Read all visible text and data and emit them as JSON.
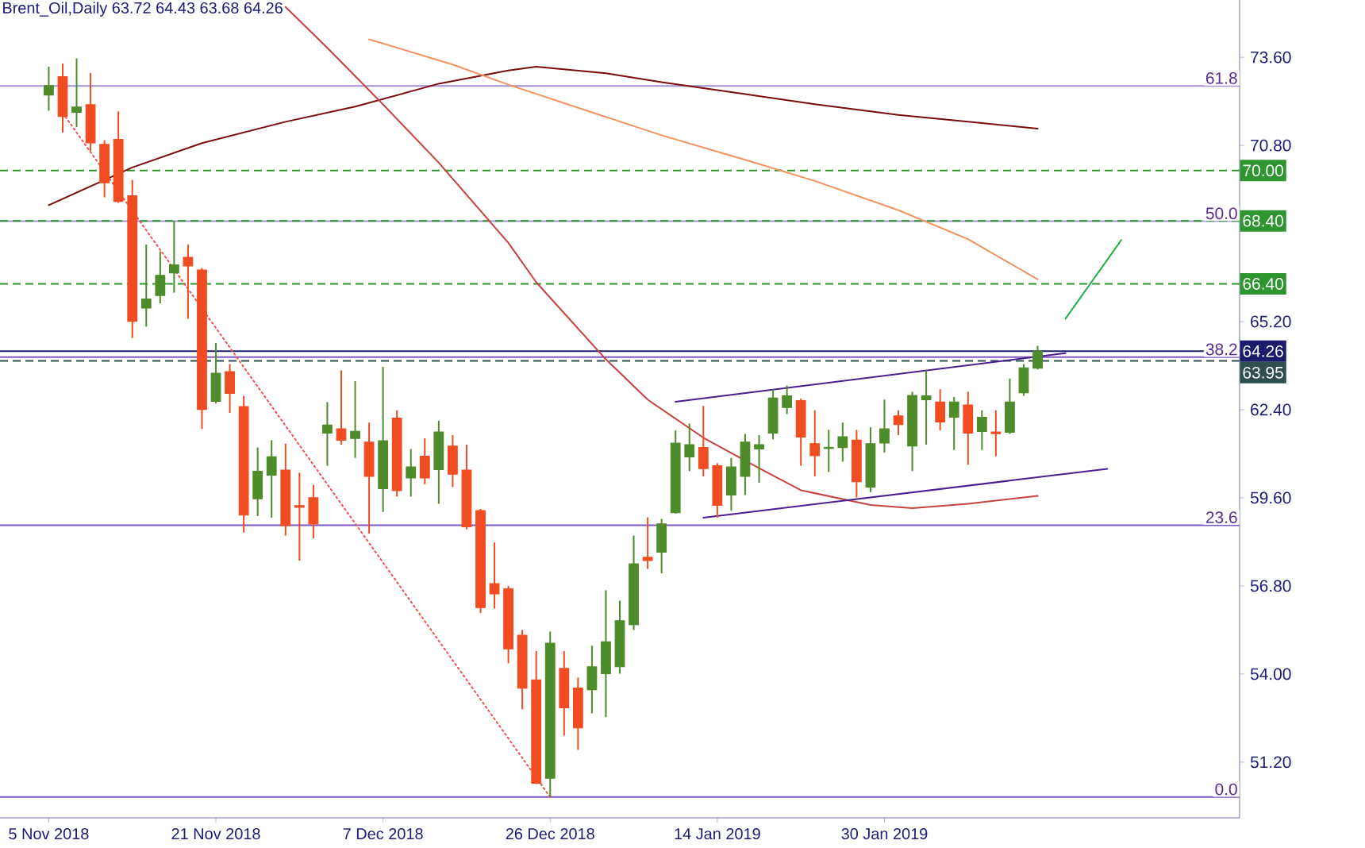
{
  "chart_data": {
    "type": "candlestick",
    "title": "Brent_Oil,Daily 63.72 64.43 63.68 64.26",
    "categories": [
      "5 Nov 2018",
      null,
      null,
      null,
      null,
      null,
      null,
      null,
      null,
      null,
      null,
      null,
      "21 Nov 2018",
      null,
      null,
      null,
      null,
      null,
      null,
      null,
      null,
      null,
      null,
      null,
      "7 Dec 2018",
      null,
      null,
      null,
      null,
      null,
      null,
      null,
      null,
      null,
      null,
      null,
      "26 Dec 2018",
      null,
      null,
      null,
      null,
      null,
      null,
      null,
      null,
      null,
      null,
      null,
      "14 Jan 2019",
      null,
      null,
      null,
      null,
      null,
      null,
      null,
      null,
      null,
      null,
      null,
      "30 Jan 2019",
      null,
      null,
      null,
      null,
      null,
      null,
      null,
      null,
      null,
      null,
      null,
      null,
      null,
      null,
      null,
      null,
      null,
      null,
      null,
      null,
      null,
      null,
      null,
      null,
      null
    ],
    "ohlc": [
      [
        72.4,
        73.3,
        71.9,
        72.7
      ],
      [
        72.98,
        73.4,
        71.21,
        71.72
      ],
      [
        71.85,
        73.56,
        71.38,
        72.02
      ],
      [
        72.09,
        73.1,
        70.62,
        70.88
      ],
      [
        70.83,
        70.96,
        69.15,
        69.61
      ],
      [
        70.99,
        71.88,
        68.97,
        69.02
      ],
      [
        69.2,
        69.7,
        64.68,
        65.21
      ],
      [
        65.63,
        67.65,
        65.04,
        65.92
      ],
      [
        66.03,
        67.43,
        65.78,
        66.67
      ],
      [
        66.75,
        68.4,
        66.12,
        67.0
      ],
      [
        67.24,
        67.65,
        65.29,
        66.97
      ],
      [
        66.84,
        66.9,
        61.79,
        62.41
      ],
      [
        62.67,
        64.52,
        62.6,
        63.56
      ],
      [
        63.61,
        63.85,
        62.3,
        62.92
      ],
      [
        62.5,
        62.84,
        58.5,
        59.05
      ],
      [
        59.57,
        61.2,
        59.02,
        60.44
      ],
      [
        60.32,
        61.43,
        58.97,
        60.9
      ],
      [
        60.48,
        61.32,
        58.4,
        58.72
      ],
      [
        59.35,
        60.4,
        57.6,
        59.3
      ],
      [
        59.6,
        60.01,
        58.31,
        58.77
      ],
      [
        61.66,
        62.64,
        60.62,
        61.91
      ],
      [
        61.79,
        63.65,
        61.29,
        61.43
      ],
      [
        61.49,
        63.31,
        60.87,
        61.71
      ],
      [
        61.37,
        61.99,
        58.46,
        60.28
      ],
      [
        59.89,
        63.76,
        59.15,
        61.41
      ],
      [
        62.13,
        62.38,
        59.64,
        59.83
      ],
      [
        60.23,
        61.15,
        59.64,
        60.58
      ],
      [
        60.92,
        61.49,
        60.03,
        60.23
      ],
      [
        60.5,
        62.05,
        59.41,
        61.69
      ],
      [
        61.24,
        61.59,
        59.94,
        60.35
      ],
      [
        60.48,
        61.29,
        58.6,
        58.68
      ],
      [
        59.19,
        59.25,
        55.94,
        56.11
      ],
      [
        56.87,
        58.18,
        56.08,
        56.55
      ],
      [
        56.71,
        56.8,
        54.34,
        54.8
      ],
      [
        55.23,
        55.4,
        52.88,
        53.55
      ],
      [
        53.81,
        54.73,
        50.5,
        50.53
      ],
      [
        50.69,
        55.35,
        50.1,
        54.98
      ],
      [
        54.18,
        54.73,
        52.04,
        52.93
      ],
      [
        53.55,
        53.89,
        51.59,
        52.29
      ],
      [
        53.5,
        54.9,
        52.75,
        54.23
      ],
      [
        54.01,
        56.66,
        52.63,
        55.02
      ],
      [
        54.23,
        56.33,
        54.01,
        55.69
      ],
      [
        55.57,
        58.4,
        55.4,
        57.5
      ],
      [
        57.71,
        58.98,
        57.34,
        57.61
      ],
      [
        57.87,
        58.93,
        57.2,
        58.77
      ],
      [
        59.13,
        61.74,
        59.1,
        61.34
      ],
      [
        60.9,
        61.96,
        60.45,
        61.29
      ],
      [
        61.2,
        62.52,
        60.28,
        60.53
      ],
      [
        60.62,
        60.7,
        58.97,
        59.36
      ],
      [
        59.69,
        60.87,
        59.19,
        60.58
      ],
      [
        60.28,
        61.63,
        59.69,
        61.37
      ],
      [
        61.15,
        61.59,
        60.08,
        61.29
      ],
      [
        61.66,
        63.05,
        61.46,
        62.77
      ],
      [
        62.47,
        63.17,
        62.26,
        62.84
      ],
      [
        62.69,
        62.75,
        60.62,
        61.53
      ],
      [
        61.32,
        62.38,
        60.28,
        60.94
      ],
      [
        61.17,
        61.76,
        60.42,
        61.2
      ],
      [
        61.2,
        61.99,
        60.75,
        61.54
      ],
      [
        61.43,
        61.76,
        59.61,
        60.11
      ],
      [
        59.94,
        61.84,
        59.78,
        61.32
      ],
      [
        61.34,
        62.72,
        61.04,
        61.79
      ],
      [
        62.2,
        62.38,
        61.59,
        61.93
      ],
      [
        61.25,
        62.97,
        60.45,
        62.85
      ],
      [
        62.72,
        63.65,
        61.29,
        62.84
      ],
      [
        62.64,
        63.05,
        61.74,
        62.01
      ],
      [
        62.16,
        62.8,
        61.12,
        62.64
      ],
      [
        62.55,
        62.97,
        60.65,
        61.66
      ],
      [
        61.71,
        62.38,
        61.12,
        62.16
      ],
      [
        61.69,
        62.38,
        60.92,
        61.64
      ],
      [
        61.68,
        63.39,
        61.63,
        62.64
      ],
      [
        62.94,
        63.85,
        62.84,
        63.73
      ],
      [
        63.72,
        64.43,
        63.68,
        64.26
      ],
      null,
      null,
      null,
      null,
      null,
      null,
      null,
      null,
      null,
      null,
      null,
      null,
      null,
      null
    ],
    "colors": [
      "#4e8b2a",
      "#f14c21",
      "#4e8b2a",
      "#f14c21",
      "#f14c21",
      "#f14c21",
      "#f14c21",
      "#4e8b2a",
      "#4e8b2a",
      "#4e8b2a",
      "#f14c21",
      "#f14c21",
      "#4e8b2a",
      "#f14c21",
      "#f14c21",
      "#4e8b2a",
      "#4e8b2a",
      "#f14c21",
      "#f14c21",
      "#f14c21",
      "#4e8b2a",
      "#f14c21",
      "#4e8b2a",
      "#f14c21",
      "#4e8b2a",
      "#f14c21",
      "#4e8b2a",
      "#f14c21",
      "#4e8b2a",
      "#f14c21",
      "#f14c21",
      "#f14c21",
      "#f14c21",
      "#f14c21",
      "#f14c21",
      "#f14c21",
      "#4e8b2a",
      "#f14c21",
      "#f14c21",
      "#4e8b2a",
      "#4e8b2a",
      "#4e8b2a",
      "#4e8b2a",
      "#f14c21",
      "#4e8b2a",
      "#4e8b2a",
      "#4e8b2a",
      "#f14c21",
      "#f14c21",
      "#4e8b2a",
      "#4e8b2a",
      "#4e8b2a",
      "#4e8b2a",
      "#4e8b2a",
      "#f14c21",
      "#f14c21",
      "#4e8b2a",
      "#4e8b2a",
      "#f14c21",
      "#4e8b2a",
      "#4e8b2a",
      "#f14c21",
      "#4e8b2a",
      "#4e8b2a",
      "#f14c21",
      "#4e8b2a",
      "#f14c21",
      "#4e8b2a",
      "#f14c21",
      "#4e8b2a",
      "#4e8b2a",
      "#4e8b2a",
      null,
      null,
      null,
      null,
      null,
      null,
      null,
      null,
      null,
      null,
      null,
      null,
      null,
      null
    ],
    "series": [
      {
        "type": "line",
        "color": "#7b0c0c",
        "values": [
          68.9,
          null,
          null,
          null,
          null,
          null,
          70.1,
          null,
          null,
          null,
          null,
          70.87,
          null,
          null,
          null,
          null,
          null,
          71.55,
          null,
          null,
          null,
          null,
          72.03,
          null,
          null,
          null,
          null,
          null,
          72.76,
          null,
          null,
          null,
          null,
          73.18,
          null,
          73.3,
          null,
          null,
          null,
          null,
          73.09,
          null,
          null,
          null,
          72.81,
          null,
          null,
          null,
          null,
          null,
          72.43,
          null,
          null,
          null,
          null,
          72.11,
          null,
          null,
          null,
          null,
          null,
          71.77,
          null,
          null,
          null,
          null,
          71.55,
          null,
          null,
          null,
          null,
          71.33,
          null,
          null,
          null,
          null,
          null,
          null,
          null,
          null,
          null,
          null,
          null,
          null,
          null,
          null
        ]
      },
      {
        "type": "line",
        "color": "#f5915f",
        "values": [
          null,
          null,
          null,
          null,
          null,
          null,
          null,
          null,
          null,
          null,
          null,
          null,
          null,
          null,
          null,
          null,
          null,
          null,
          null,
          null,
          null,
          null,
          null,
          74.17,
          null,
          null,
          null,
          null,
          null,
          73.37,
          null,
          null,
          null,
          72.73,
          null,
          null,
          null,
          null,
          null,
          71.85,
          null,
          null,
          null,
          null,
          71.12,
          null,
          null,
          null,
          null,
          null,
          70.34,
          null,
          null,
          null,
          null,
          69.67,
          null,
          null,
          null,
          null,
          null,
          68.74,
          null,
          null,
          null,
          null,
          67.82,
          null,
          null,
          null,
          null,
          66.54,
          null,
          null,
          null,
          null,
          null,
          null,
          null,
          null,
          null,
          null,
          null,
          null,
          null,
          null
        ]
      },
      {
        "type": "line",
        "color": "#c8423c",
        "values": [
          null,
          null,
          null,
          null,
          null,
          null,
          null,
          null,
          null,
          null,
          null,
          null,
          null,
          null,
          null,
          null,
          null,
          75.2,
          null,
          null,
          73.9,
          null,
          null,
          null,
          72.1,
          null,
          null,
          null,
          70.25,
          null,
          null,
          null,
          null,
          67.7,
          null,
          66.45,
          null,
          null,
          null,
          null,
          64.0,
          null,
          null,
          62.72,
          null,
          null,
          null,
          61.51,
          null,
          null,
          null,
          60.54,
          null,
          null,
          59.84,
          null,
          null,
          null,
          null,
          59.37,
          null,
          null,
          59.27,
          null,
          null,
          null,
          59.41,
          null,
          null,
          null,
          null,
          59.66,
          null,
          null,
          null,
          null,
          null,
          null,
          null,
          null,
          null,
          null,
          null,
          null,
          null,
          null
        ]
      },
      {
        "type": "line",
        "color": "#4b1e8f",
        "values": [
          null,
          null,
          null,
          null,
          null,
          null,
          null,
          null,
          null,
          null,
          null,
          null,
          null,
          null,
          null,
          null,
          null,
          null,
          null,
          null,
          null,
          null,
          null,
          null,
          null,
          null,
          null,
          null,
          null,
          null,
          null,
          null,
          null,
          null,
          null,
          null,
          null,
          null,
          null,
          null,
          null,
          null,
          null,
          null,
          null,
          62.65,
          null,
          null,
          null,
          null,
          null,
          null,
          null,
          null,
          null,
          null,
          null,
          null,
          null,
          null,
          null,
          null,
          null,
          null,
          null,
          null,
          null,
          null,
          null,
          null,
          null,
          null,
          null,
          64.2,
          null,
          null,
          null,
          null,
          null,
          null,
          null,
          null,
          null,
          null,
          null,
          null
        ]
      },
      {
        "type": "line",
        "color": "#4b1e8f",
        "values": [
          null,
          null,
          null,
          null,
          null,
          null,
          null,
          null,
          null,
          null,
          null,
          null,
          null,
          null,
          null,
          null,
          null,
          null,
          null,
          null,
          null,
          null,
          null,
          null,
          null,
          null,
          null,
          null,
          null,
          null,
          null,
          null,
          null,
          null,
          null,
          null,
          null,
          null,
          null,
          null,
          null,
          null,
          null,
          null,
          null,
          null,
          null,
          58.97,
          null,
          null,
          null,
          null,
          null,
          null,
          null,
          null,
          null,
          null,
          null,
          null,
          null,
          null,
          null,
          null,
          null,
          null,
          null,
          null,
          null,
          null,
          null,
          null,
          null,
          null,
          null,
          null,
          60.52,
          null,
          null,
          null,
          null,
          null,
          null,
          null,
          null,
          null
        ]
      },
      {
        "type": "line",
        "color": "#f05050",
        "line_style": "dotted",
        "values": [
          null,
          71.83,
          null,
          null,
          null,
          null,
          null,
          null,
          null,
          null,
          null,
          null,
          null,
          null,
          null,
          null,
          null,
          null,
          null,
          null,
          null,
          null,
          null,
          null,
          null,
          null,
          null,
          null,
          null,
          null,
          null,
          null,
          null,
          null,
          null,
          null,
          50.09,
          null,
          null,
          null,
          null,
          null,
          null,
          null,
          null,
          null,
          null,
          null,
          null,
          null,
          null,
          null,
          null,
          null,
          null,
          null,
          null,
          null,
          null,
          null,
          null,
          null,
          null,
          null,
          null,
          null,
          null,
          null,
          null,
          null,
          null,
          null,
          null,
          null,
          null,
          null,
          null,
          null,
          null,
          null,
          null,
          null,
          null,
          null,
          null,
          null
        ]
      },
      {
        "type": "line",
        "color": "#22b04b",
        "values": [
          null,
          null,
          null,
          null,
          null,
          null,
          null,
          null,
          null,
          null,
          null,
          null,
          null,
          null,
          null,
          null,
          null,
          null,
          null,
          null,
          null,
          null,
          null,
          null,
          null,
          null,
          null,
          null,
          null,
          null,
          null,
          null,
          null,
          null,
          null,
          null,
          null,
          null,
          null,
          null,
          null,
          null,
          null,
          null,
          null,
          null,
          null,
          null,
          null,
          null,
          null,
          null,
          null,
          null,
          null,
          null,
          null,
          null,
          null,
          null,
          null,
          null,
          null,
          null,
          null,
          null,
          null,
          null,
          null,
          null,
          null,
          null,
          null,
          65.29,
          null,
          null,
          null,
          67.79,
          null,
          null,
          null,
          null,
          null,
          null,
          null,
          null
        ]
      }
    ],
    "ylim": [
      49.43,
      75.42
    ],
    "yticks": [
      {
        "value": 73.6,
        "label": "73.60"
      },
      {
        "value": 70.8,
        "label": "70.80"
      },
      {
        "value": 65.2,
        "label": "65.20"
      },
      {
        "value": 62.4,
        "label": "62.40"
      },
      {
        "value": 59.6,
        "label": "59.60"
      },
      {
        "value": 56.8,
        "label": "56.80"
      },
      {
        "value": 54.0,
        "label": "54.00"
      },
      {
        "value": 51.2,
        "label": "51.20"
      }
    ],
    "ref_lines": [
      {
        "axis": "y",
        "value": 72.69,
        "color": "#a58fd6",
        "line_style": "solid"
      },
      {
        "axis": "y",
        "value": 68.39,
        "color": "#a58fd6",
        "line_style": "solid"
      },
      {
        "axis": "y",
        "value": 64.07,
        "color": "#7e57c2",
        "line_style": "solid"
      },
      {
        "axis": "y",
        "value": 58.73,
        "color": "#7e57c2",
        "line_style": "solid"
      },
      {
        "axis": "y",
        "value": 50.09,
        "color": "#7e57c2",
        "line_style": "solid"
      },
      {
        "axis": "y",
        "value": 70.0,
        "label": "70.00",
        "color": "#2f962f",
        "line_style": "dashed"
      },
      {
        "axis": "y",
        "value": 68.4,
        "label": "68.40",
        "color": "#2f962f",
        "line_style": "dashed"
      },
      {
        "axis": "y",
        "value": 66.4,
        "label": "66.40",
        "color": "#2f962f",
        "line_style": "dashed"
      },
      {
        "axis": "y",
        "value": 64.26,
        "label": "64.26",
        "color": "#1c1c6b",
        "line_style": "solid"
      },
      {
        "axis": "y",
        "value": 63.95,
        "label": "63.95",
        "color": "#2f4f4f",
        "line_style": "dashed"
      }
    ],
    "annotations": [
      {
        "text": "61.8",
        "y": 72.69
      },
      {
        "text": "50.0",
        "y": 68.39
      },
      {
        "text": "38.2",
        "y": 64.07
      },
      {
        "text": "23.6",
        "y": 58.73
      },
      {
        "text": "0.0",
        "y": 50.09
      }
    ]
  }
}
